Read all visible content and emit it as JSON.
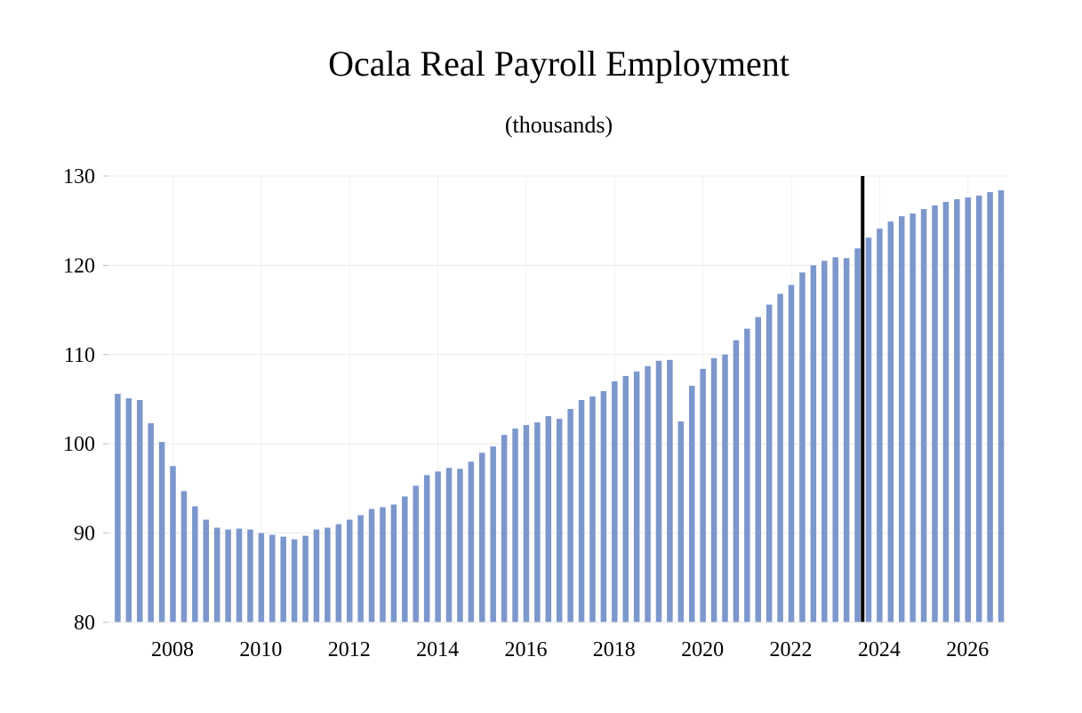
{
  "chart_data": {
    "type": "bar",
    "title": "Ocala Real Payroll Employment",
    "subtitle": "(thousands)",
    "xlabel": "",
    "ylabel": "",
    "ylim": [
      80,
      130
    ],
    "yticks": [
      80,
      90,
      100,
      110,
      120,
      130
    ],
    "xticks": [
      "2008",
      "2010",
      "2012",
      "2014",
      "2016",
      "2018",
      "2020",
      "2022",
      "2024",
      "2026"
    ],
    "grid": true,
    "bar_color": "#7b97cc",
    "forecast_marker": {
      "after": "2024Q1",
      "color": "#000000"
    },
    "categories": [
      "2007Q2",
      "2007Q3",
      "2007Q4",
      "2008Q1",
      "2008Q2",
      "2008Q3",
      "2008Q4",
      "2009Q1",
      "2009Q2",
      "2009Q3",
      "2009Q4",
      "2010Q1",
      "2010Q2",
      "2010Q3",
      "2010Q4",
      "2011Q1",
      "2011Q2",
      "2011Q3",
      "2011Q4",
      "2012Q1",
      "2012Q2",
      "2012Q3",
      "2012Q4",
      "2013Q1",
      "2013Q2",
      "2013Q3",
      "2013Q4",
      "2014Q1",
      "2014Q2",
      "2014Q3",
      "2014Q4",
      "2015Q1",
      "2015Q2",
      "2015Q3",
      "2015Q4",
      "2016Q1",
      "2016Q2",
      "2016Q3",
      "2016Q4",
      "2017Q1",
      "2017Q2",
      "2017Q3",
      "2017Q4",
      "2018Q1",
      "2018Q2",
      "2018Q3",
      "2018Q4",
      "2019Q1",
      "2019Q2",
      "2019Q3",
      "2019Q4",
      "2020Q1",
      "2020Q2",
      "2020Q3",
      "2020Q4",
      "2021Q1",
      "2021Q2",
      "2021Q3",
      "2021Q4",
      "2022Q1",
      "2022Q2",
      "2022Q3",
      "2022Q4",
      "2023Q1",
      "2023Q2",
      "2023Q3",
      "2023Q4",
      "2024Q1",
      "2024Q2",
      "2024Q3",
      "2024Q4",
      "2025Q1",
      "2025Q2",
      "2025Q3",
      "2025Q4",
      "2026Q1",
      "2026Q2",
      "2026Q3",
      "2026Q4",
      "2027Q1",
      "2027Q2"
    ],
    "values": [
      105.6,
      105.1,
      104.9,
      102.3,
      100.2,
      97.5,
      94.7,
      93.0,
      91.5,
      90.6,
      90.4,
      90.5,
      90.4,
      90.0,
      89.8,
      89.6,
      89.3,
      89.7,
      90.4,
      90.6,
      91.0,
      91.5,
      92.0,
      92.7,
      92.9,
      93.2,
      94.1,
      95.3,
      96.5,
      96.9,
      97.3,
      97.2,
      98.0,
      99.0,
      99.7,
      101.0,
      101.7,
      102.1,
      102.4,
      103.1,
      102.8,
      103.9,
      104.9,
      105.3,
      105.9,
      107.0,
      107.6,
      108.1,
      108.7,
      109.3,
      109.4,
      102.5,
      106.5,
      108.4,
      109.6,
      110.0,
      111.6,
      112.9,
      114.2,
      115.6,
      116.8,
      117.8,
      119.2,
      120.0,
      120.5,
      120.9,
      120.8,
      121.9,
      123.1,
      124.1,
      124.9,
      125.5,
      125.8,
      126.3,
      126.7,
      127.1,
      127.4,
      127.6,
      127.8,
      128.2,
      128.4
    ]
  }
}
